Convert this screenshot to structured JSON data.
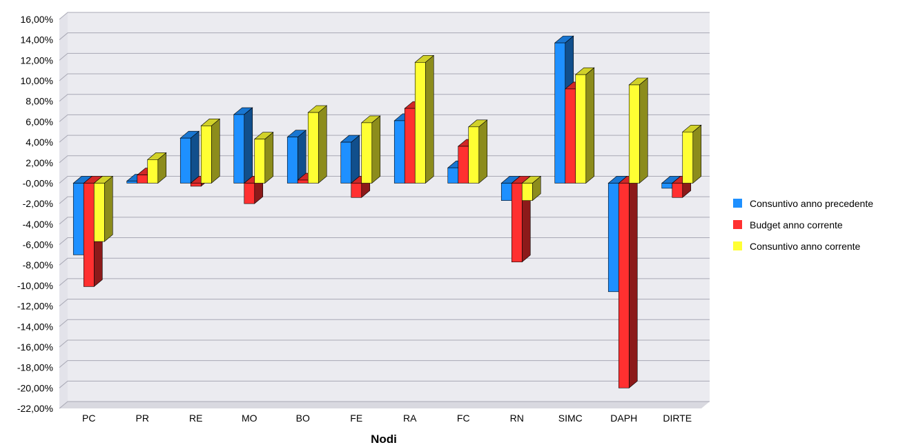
{
  "chart_data": {
    "type": "bar",
    "variant": "3d-clustered-column",
    "xlabel": "Nodi",
    "ylabel": "",
    "ylim": [
      -22,
      16
    ],
    "ytick_step": 2,
    "ytick_format": "percent-comma-2",
    "grid": true,
    "legend_position": "right",
    "categories": [
      "PC",
      "PR",
      "RE",
      "MO",
      "BO",
      "FE",
      "RA",
      "FC",
      "RN",
      "SIMC",
      "DAPH",
      "DIRTE"
    ],
    "series": [
      {
        "name": "Consuntivo anno precedente",
        "color": "#1e90ff",
        "values": [
          -7.0,
          0.2,
          4.4,
          6.7,
          4.5,
          4.0,
          6.1,
          1.5,
          -1.7,
          13.7,
          -10.6,
          -0.5
        ]
      },
      {
        "name": "Budget anno corrente",
        "color": "#ff3030",
        "values": [
          -10.1,
          0.8,
          -0.3,
          -2.0,
          0.3,
          -1.4,
          7.3,
          3.6,
          -7.7,
          9.2,
          -20.0,
          -1.4
        ]
      },
      {
        "name": "Consuntivo anno corrente",
        "color": "#ffff33",
        "values": [
          -5.7,
          2.3,
          5.6,
          4.3,
          6.9,
          5.9,
          11.8,
          5.5,
          -1.7,
          10.6,
          9.6,
          5.0
        ]
      }
    ]
  }
}
